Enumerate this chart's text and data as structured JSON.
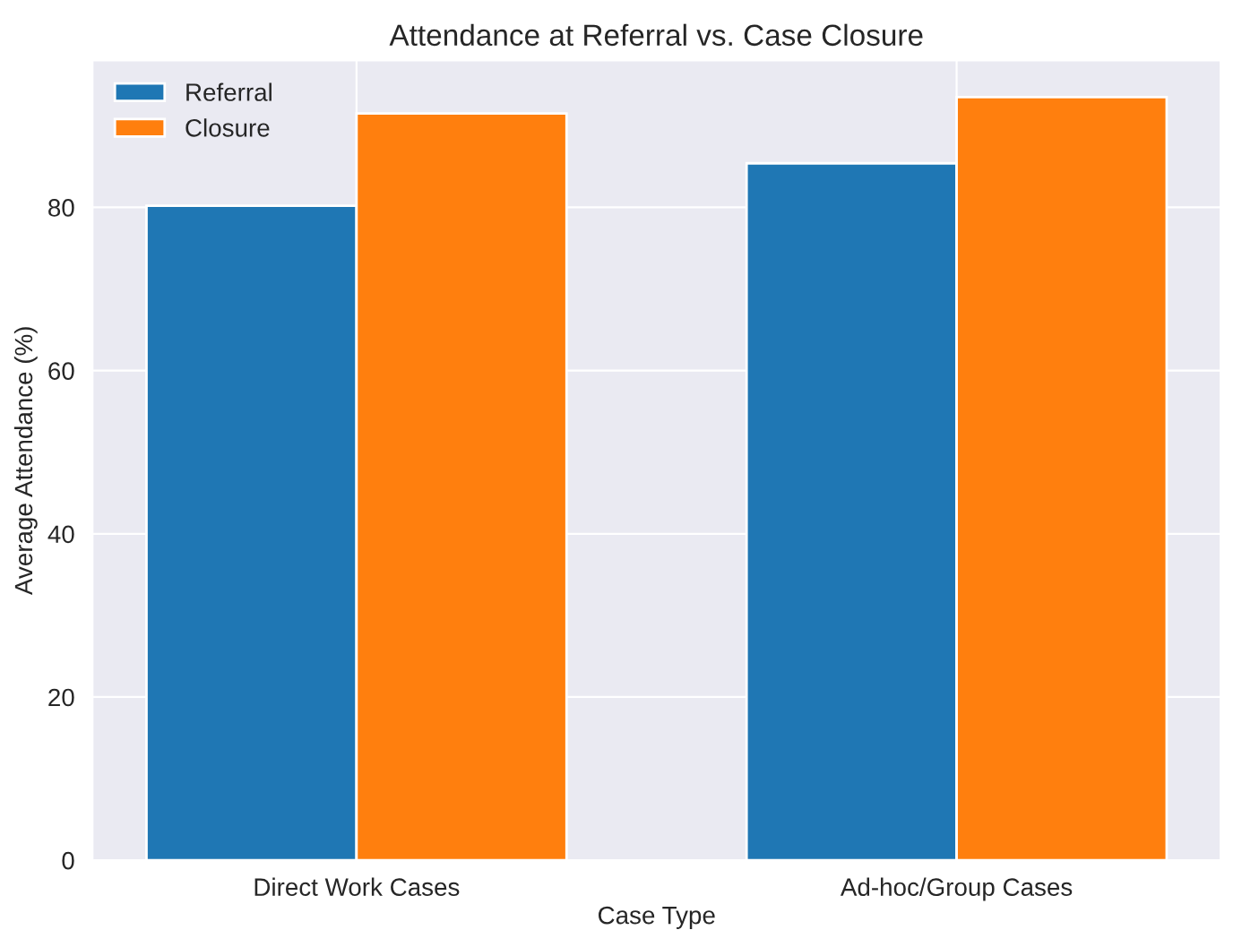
{
  "chart_data": {
    "type": "bar",
    "title": "Attendance at Referral vs. Case Closure",
    "xlabel": "Case Type",
    "ylabel": "Average Attendance (%)",
    "categories": [
      "Direct Work Cases",
      "Ad-hoc/Group Cases"
    ],
    "series": [
      {
        "name": "Referral",
        "color": "#1f77b4",
        "values": [
          80.2,
          85.4
        ]
      },
      {
        "name": "Closure",
        "color": "#ff7f0e",
        "values": [
          91.5,
          93.5
        ]
      }
    ],
    "ylim": [
      0,
      98
    ],
    "yticks": [
      0,
      20,
      40,
      60,
      80
    ],
    "grid": true,
    "legend": "top left"
  }
}
